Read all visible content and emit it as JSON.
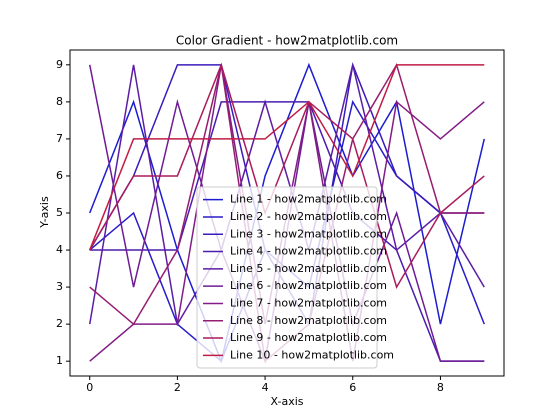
{
  "chart_data": {
    "type": "line",
    "title": "Color Gradient - how2matplotlib.com",
    "x_label": "X-axis",
    "y_label": "Y-axis",
    "x": [
      0,
      1,
      2,
      3,
      4,
      5,
      6,
      7,
      8,
      9
    ],
    "xlim": [
      -0.45,
      9.45
    ],
    "xticks": [
      0,
      2,
      4,
      6,
      8
    ],
    "ylim": [
      0.6,
      9.4
    ],
    "yticks": [
      1,
      2,
      3,
      4,
      5,
      6,
      7,
      8,
      9
    ],
    "legend": "lower center",
    "series": [
      {
        "name": "Line 1 - how2matplotlib.com",
        "color": "#1c1cd0",
        "values": [
          5,
          8,
          4,
          1,
          6,
          9,
          6,
          8,
          2,
          7
        ]
      },
      {
        "name": "Line 2 - how2matplotlib.com",
        "color": "#2a1cc8",
        "values": [
          4,
          5,
          2,
          1,
          4,
          3,
          8,
          6,
          5,
          2
        ]
      },
      {
        "name": "Line 3 - how2matplotlib.com",
        "color": "#3a1cbc",
        "values": [
          4,
          6,
          9,
          9,
          4,
          2,
          9,
          6,
          5,
          5
        ]
      },
      {
        "name": "Line 4 - how2matplotlib.com",
        "color": "#4a1cb0",
        "values": [
          4,
          4,
          4,
          8,
          8,
          8,
          5,
          4,
          1,
          1
        ]
      },
      {
        "name": "Line 5 - how2matplotlib.com",
        "color": "#5c1ca4",
        "values": [
          2,
          9,
          2,
          4,
          8,
          4,
          9,
          4,
          5,
          3
        ]
      },
      {
        "name": "Line 6 - how2matplotlib.com",
        "color": "#6e1c96",
        "values": [
          9,
          3,
          8,
          4,
          1,
          8,
          2,
          5,
          1,
          1
        ]
      },
      {
        "name": "Line 7 - how2matplotlib.com",
        "color": "#821c86",
        "values": [
          1,
          2,
          2,
          9,
          2,
          8,
          1,
          8,
          7,
          8
        ]
      },
      {
        "name": "Line 8 - how2matplotlib.com",
        "color": "#961c72",
        "values": [
          3,
          2,
          4,
          9,
          1,
          2,
          7,
          9,
          5,
          5
        ]
      },
      {
        "name": "Line 9 - how2matplotlib.com",
        "color": "#aa1c5c",
        "values": [
          4,
          6,
          6,
          9,
          5,
          8,
          7,
          3,
          5,
          6
        ]
      },
      {
        "name": "Line 10 - how2matplotlib.com",
        "color": "#c01c44",
        "values": [
          4,
          7,
          7,
          7,
          7,
          8,
          6,
          9,
          9,
          9
        ]
      }
    ]
  }
}
